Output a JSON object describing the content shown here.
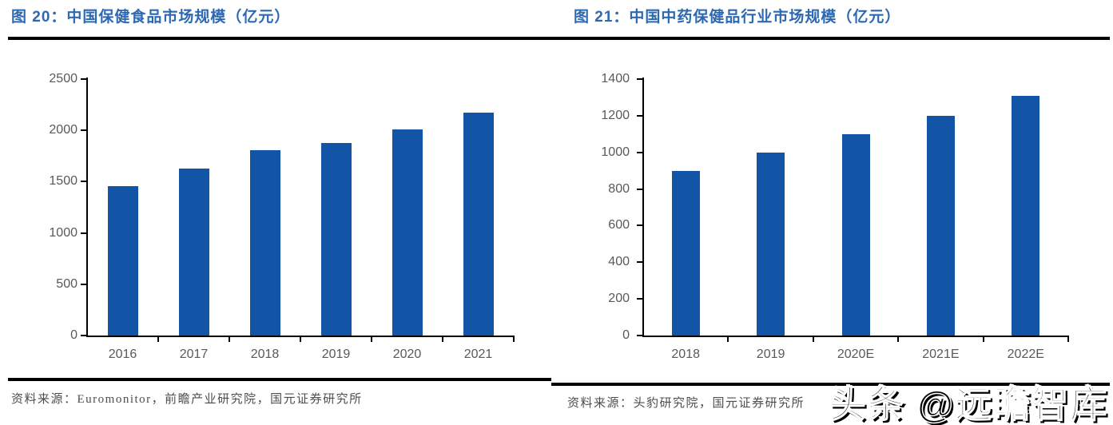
{
  "figures": [
    {
      "title": "图 20：中国保健食品市场规模（亿元）",
      "source_label": "资料来源：",
      "source_text": "Euromonitor，前瞻产业研究院，国元证券研究所"
    },
    {
      "title": "图 21：中国中药保健品行业市场规模（亿元）",
      "source_label": "资料来源：",
      "source_text": "头豹研究院，国元证券研究所"
    }
  ],
  "watermark": {
    "text": "头条 @远瞻智库"
  },
  "colors": {
    "bar": "#1254A6",
    "title": "#2D68B3",
    "axis": "#000000",
    "tick_label": "#595959",
    "source_text": "#4D4D4D",
    "rule": "#000000"
  },
  "chart_data": [
    {
      "type": "bar",
      "title": "图 20：中国保健食品市场规模（亿元）",
      "categories": [
        "2016",
        "2017",
        "2018",
        "2019",
        "2020",
        "2021"
      ],
      "values": [
        1455,
        1630,
        1810,
        1880,
        2010,
        2170
      ],
      "xlabel": "",
      "ylabel": "",
      "ylim": [
        0,
        2500
      ],
      "ytick_step": 500,
      "grid": false,
      "legend": false,
      "bar_color": "#1254A6"
    },
    {
      "type": "bar",
      "title": "图 21：中国中药保健品行业市场规模（亿元）",
      "categories": [
        "2018",
        "2019",
        "2020E",
        "2021E",
        "2022E"
      ],
      "values": [
        900,
        1000,
        1100,
        1200,
        1310
      ],
      "xlabel": "",
      "ylabel": "",
      "ylim": [
        0,
        1400
      ],
      "ytick_step": 200,
      "grid": false,
      "legend": false,
      "bar_color": "#1254A6"
    }
  ]
}
